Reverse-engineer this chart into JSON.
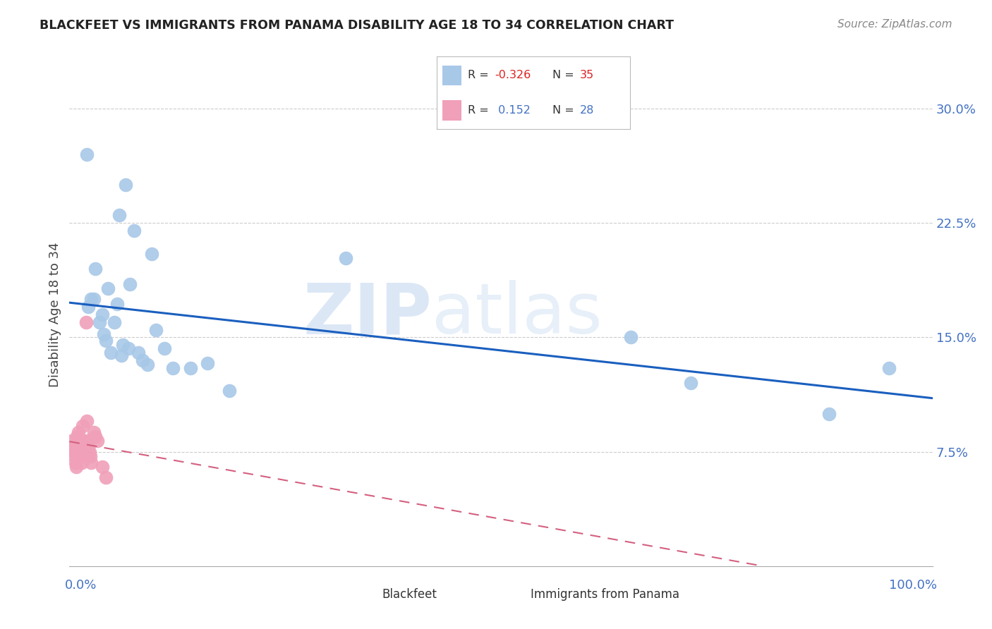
{
  "title": "BLACKFEET VS IMMIGRANTS FROM PANAMA DISABILITY AGE 18 TO 34 CORRELATION CHART",
  "source": "Source: ZipAtlas.com",
  "ylabel": "Disability Age 18 to 34",
  "ytick_values": [
    0.075,
    0.15,
    0.225,
    0.3
  ],
  "xlim": [
    0.0,
    1.0
  ],
  "ylim": [
    0.0,
    0.33
  ],
  "watermark_zip": "ZIP",
  "watermark_atlas": "atlas",
  "blackfeet_color": "#a8c8e8",
  "blackfeet_edge": "#7aadd4",
  "panama_color": "#f0a0b8",
  "panama_edge": "#e07898",
  "trendline_blue_color": "#1a5fbf",
  "trendline_pink_color": "#d46080",
  "R_blackfeet": -0.326,
  "N_blackfeet": 35,
  "R_panama": 0.152,
  "N_panama": 28,
  "blackfeet_x": [
    0.02,
    0.022,
    0.025,
    0.028,
    0.03,
    0.035,
    0.038,
    0.04,
    0.042,
    0.045,
    0.048,
    0.052,
    0.055,
    0.058,
    0.06,
    0.062,
    0.065,
    0.068,
    0.07,
    0.075,
    0.08,
    0.085,
    0.09,
    0.095,
    0.1,
    0.11,
    0.12,
    0.14,
    0.16,
    0.185,
    0.32,
    0.65,
    0.72,
    0.88,
    0.95
  ],
  "blackfeet_y": [
    0.27,
    0.17,
    0.175,
    0.175,
    0.195,
    0.16,
    0.165,
    0.152,
    0.148,
    0.182,
    0.14,
    0.16,
    0.172,
    0.23,
    0.138,
    0.145,
    0.25,
    0.143,
    0.185,
    0.22,
    0.14,
    0.135,
    0.132,
    0.205,
    0.155,
    0.143,
    0.13,
    0.13,
    0.133,
    0.115,
    0.202,
    0.15,
    0.12,
    0.1,
    0.13
  ],
  "panama_x": [
    0.003,
    0.004,
    0.005,
    0.006,
    0.007,
    0.008,
    0.009,
    0.01,
    0.011,
    0.012,
    0.013,
    0.014,
    0.015,
    0.016,
    0.017,
    0.018,
    0.019,
    0.02,
    0.021,
    0.022,
    0.023,
    0.024,
    0.025,
    0.028,
    0.03,
    0.032,
    0.038,
    0.042
  ],
  "panama_y": [
    0.082,
    0.078,
    0.075,
    0.072,
    0.068,
    0.065,
    0.085,
    0.088,
    0.078,
    0.075,
    0.072,
    0.068,
    0.092,
    0.082,
    0.078,
    0.072,
    0.16,
    0.095,
    0.082,
    0.078,
    0.075,
    0.072,
    0.068,
    0.088,
    0.085,
    0.082,
    0.065,
    0.058
  ]
}
